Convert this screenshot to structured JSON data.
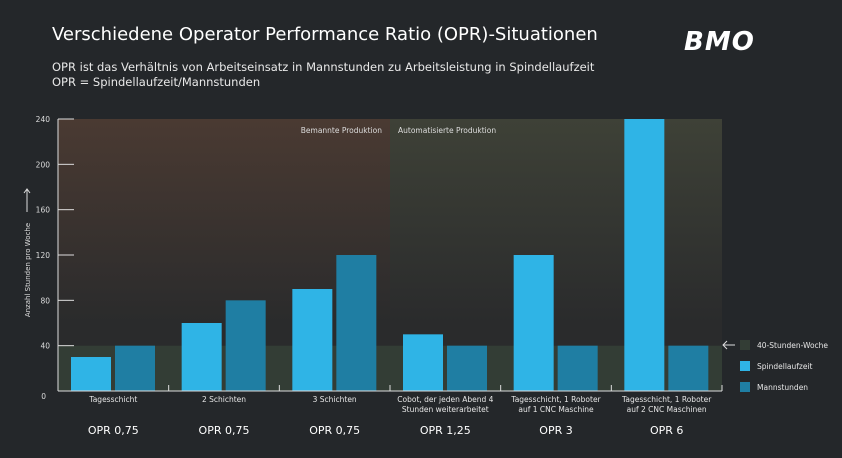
{
  "header": {
    "title": "Verschiedene Operator Performance Ratio (OPR)-Situationen",
    "subtitle1": "OPR ist das Verhältnis von Arbeitseinsatz in Mannstunden zu Arbeitsleistung in Spindellaufzeit",
    "subtitle2": "OPR = Spindellaufzeit/Mannstunden",
    "logo": "BMO"
  },
  "chart_data": {
    "type": "bar",
    "ylabel": "Anzahl Stunden pro Woche",
    "ylim": [
      0,
      240
    ],
    "yticks": [
      0,
      40,
      80,
      120,
      160,
      200,
      240
    ],
    "categories": [
      "Tagesschicht",
      "2 Schichten",
      "3 Schichten",
      "Cobot, der jeden Abend 4 Stunden weiterarbeitet",
      "Tagesschicht, 1 Roboter auf 1 CNC Maschine",
      "Tagesschicht, 1 Roboter auf 2 CNC Maschinen"
    ],
    "category_lines": [
      [
        "Tagesschicht"
      ],
      [
        "2 Schichten"
      ],
      [
        "3 Schichten"
      ],
      [
        "Cobot, der jeden Abend 4",
        "Stunden weiterarbeitet"
      ],
      [
        "Tagesschicht, 1 Roboter",
        "auf 1 CNC Maschine"
      ],
      [
        "Tagesschicht, 1 Roboter",
        "auf 2 CNC Maschinen"
      ]
    ],
    "opr_labels": [
      "OPR 0,75",
      "OPR 0,75",
      "OPR 0,75",
      "OPR 1,25",
      "OPR 3",
      "OPR 6"
    ],
    "series": [
      {
        "name": "Spindellaufzeit",
        "values": [
          30,
          60,
          90,
          50,
          120,
          240
        ],
        "color": "#2fb4e6"
      },
      {
        "name": "Mannstunden",
        "values": [
          40,
          80,
          120,
          40,
          40,
          40
        ],
        "color": "#1f7ea3"
      }
    ],
    "regions": [
      {
        "label": "Bemannte Produktion",
        "from_category": 0,
        "to_category": 2,
        "color": "#4a3a32"
      },
      {
        "label": "Automatisierte Produktion",
        "from_category": 3,
        "to_category": 5,
        "color": "#3c3f36"
      }
    ],
    "reference_band": {
      "name": "40-Stunden-Woche",
      "from": 0,
      "to": 40,
      "color": "#333d35"
    },
    "legend": "right",
    "grid": false
  }
}
